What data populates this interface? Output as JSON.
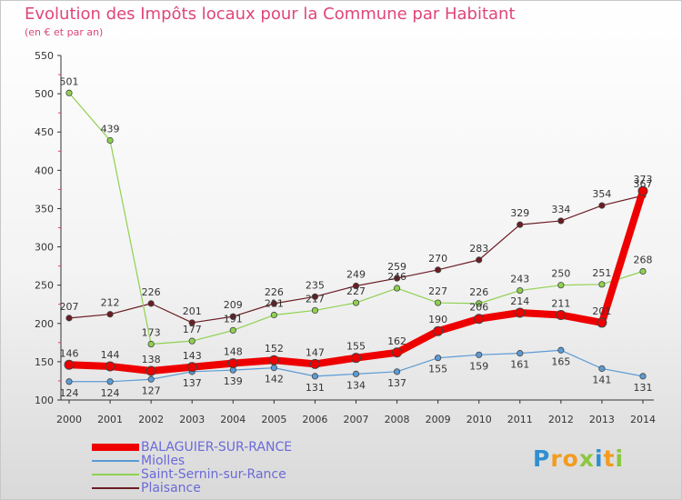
{
  "title": "Evolution des Impôts locaux pour la Commune par Habitant",
  "subtitle": "(en € et par an)",
  "logo": {
    "text": "Proxiti"
  },
  "colors": {
    "balaguier": "#ee0000",
    "miolles": "#5b9bd5",
    "saint_sernin": "#8fd14f",
    "plaisance": "#6b1d24",
    "title": "#e0457b",
    "legend_text": "#6a6ad8"
  },
  "chart_data": {
    "type": "line",
    "title": "Evolution des Impôts locaux pour la Commune par Habitant",
    "subtitle": "(en € et par an)",
    "xlabel": "",
    "ylabel": "",
    "x": [
      "2000",
      "2001",
      "2002",
      "2003",
      "2004",
      "2005",
      "2006",
      "2007",
      "2008",
      "2009",
      "2010",
      "2011",
      "2012",
      "2013",
      "2014"
    ],
    "ylim": [
      100,
      550
    ],
    "yticks": [
      100,
      150,
      200,
      250,
      300,
      350,
      400,
      450,
      500,
      550
    ],
    "grid": false,
    "legend_position": "bottom-left",
    "series": [
      {
        "name": "Plaisance",
        "color": "#6b1d24",
        "line_width": 1.2,
        "values": [
          207,
          212,
          226,
          201,
          209,
          226,
          235,
          249,
          259,
          270,
          283,
          329,
          334,
          354,
          367
        ]
      },
      {
        "name": "Saint-Sernin-sur-Rance",
        "color": "#8fd14f",
        "line_width": 1.2,
        "values": [
          501,
          439,
          173,
          177,
          191,
          211,
          217,
          227,
          246,
          227,
          226,
          243,
          250,
          251,
          268
        ]
      },
      {
        "name": "Miolles",
        "color": "#5b9bd5",
        "line_width": 1.2,
        "values": [
          124,
          124,
          127,
          137,
          139,
          142,
          131,
          134,
          137,
          155,
          159,
          161,
          165,
          141,
          131
        ]
      },
      {
        "name": "BALAGUIER-SUR-RANCE",
        "color": "#ee0000",
        "line_width": 8,
        "values": [
          146,
          144,
          138,
          143,
          148,
          152,
          147,
          155,
          162,
          190,
          206,
          214,
          211,
          201,
          373
        ]
      }
    ],
    "value_labels": {
      "Plaisance": [
        "207",
        "212",
        "226",
        "201",
        "209",
        "226",
        "235",
        "249",
        "259",
        "270",
        "283",
        "329",
        "334",
        "354",
        "367"
      ],
      "Saint-Sernin-sur-Rance": [
        "501",
        "439",
        "173",
        "177",
        "191",
        "211",
        "217",
        "227",
        "246",
        "227",
        "226",
        "243",
        "250",
        "251",
        "268"
      ],
      "Miolles": [
        "124",
        "124",
        "127",
        "137",
        "139",
        "142",
        "131",
        "134",
        "137",
        "155",
        "159",
        "161",
        "165",
        "141",
        "131"
      ],
      "BALAGUIER-SUR-RANCE": [
        "146",
        "144",
        "138",
        "143",
        "148",
        "152",
        "147",
        "155",
        "162",
        "190",
        "206",
        "214",
        "211",
        "201",
        "373"
      ]
    }
  },
  "legend": [
    {
      "label": "BALAGUIER-SUR-RANCE",
      "color": "#ee0000",
      "thickness": 8
    },
    {
      "label": "Miolles",
      "color": "#5b9bd5",
      "thickness": 1.5
    },
    {
      "label": "Saint-Sernin-sur-Rance",
      "color": "#8fd14f",
      "thickness": 1.5
    },
    {
      "label": "Plaisance",
      "color": "#6b1d24",
      "thickness": 1.5
    }
  ]
}
